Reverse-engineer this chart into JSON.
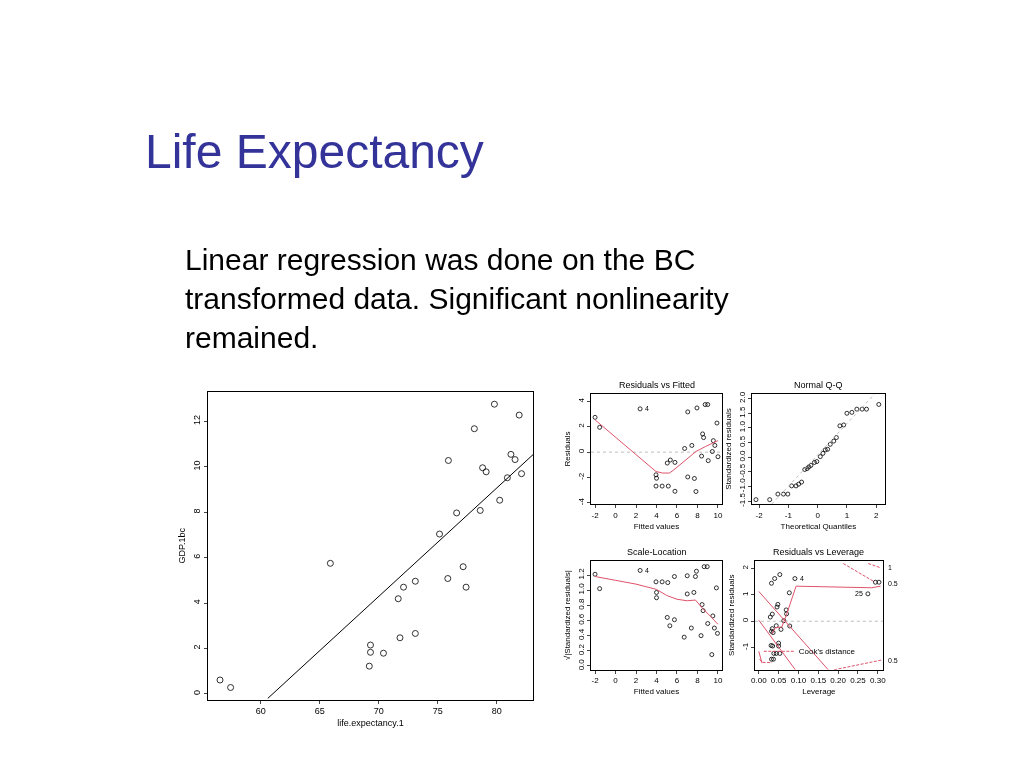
{
  "chart_data": [
    {
      "type": "other",
      "title": "Life Expectancy",
      "annotations": [
        "Linear regression was done on the BC transformed data. Significant nonlinearity remained."
      ]
    },
    {
      "type": "scatter",
      "xlabel": "life.expectancy.1",
      "ylabel": "GDP.1bc",
      "xlim": [
        55.5,
        83.1
      ],
      "ylim": [
        -0.25,
        13.3
      ],
      "xticks": [
        60,
        65,
        70,
        75,
        80
      ],
      "yticks": [
        0,
        2,
        4,
        6,
        8,
        10,
        12
      ],
      "grid": false,
      "legend": false,
      "series": [
        {
          "type": "scatter",
          "marker": "circle",
          "color": "#000000",
          "x": [
            56.55,
            57.45,
            65.9,
            69.2,
            69.3,
            69.3,
            70.4,
            71.65,
            71.8,
            72.1,
            73.1,
            73.1,
            75.15,
            75.85,
            75.9,
            76.6,
            77.15,
            77.4,
            78.1,
            78.6,
            78.8,
            79.1,
            79.8,
            80.25,
            80.9,
            81.2,
            81.55,
            81.9,
            82.1
          ],
          "values": [
            0.61,
            0.28,
            5.75,
            1.22,
            1.83,
            2.15,
            1.79,
            4.19,
            2.47,
            4.7,
            4.96,
            2.66,
            7.04,
            5.08,
            10.28,
            7.97,
            5.6,
            4.7,
            11.68,
            8.08,
            9.96,
            9.78,
            12.76,
            8.53,
            9.52,
            10.55,
            10.32,
            12.28,
            9.7
          ]
        },
        {
          "type": "line",
          "marker": "none",
          "line_style": "solid",
          "color": "#000000",
          "x": [
            60.6,
            83.1
          ],
          "values": [
            -0.2,
            10.55
          ]
        }
      ]
    },
    {
      "type": "scatter",
      "title": "Residuals vs Fitted",
      "xlabel": "Fitted values",
      "ylabel": "Residuals",
      "xlim": [
        -2.4,
        10.4
      ],
      "ylim": [
        -4.1,
        4.6
      ],
      "xticks": [
        -2,
        0,
        2,
        4,
        6,
        8,
        10
      ],
      "yticks": [
        -4,
        -2,
        0,
        2,
        4
      ],
      "grid": false,
      "legend": false,
      "ref_lines": [
        {
          "axis": "y",
          "value": 0,
          "color": "#bebebe",
          "line_style": "dotted"
        }
      ],
      "annotations": [
        {
          "text": "4",
          "x": 2.4,
          "y": 3.42
        }
      ],
      "series": [
        {
          "type": "scatter",
          "marker": "circle",
          "color": "#000000",
          "x": [
            -2.0,
            -1.55,
            2.4,
            3.95,
            4.0,
            3.95,
            4.55,
            5.15,
            5.05,
            5.35,
            5.8,
            5.8,
            6.75,
            7.05,
            7.05,
            7.45,
            7.7,
            7.85,
            7.95,
            8.4,
            8.5,
            8.6,
            8.75,
            9.0,
            9.05,
            9.45,
            9.55,
            9.7,
            9.9,
            10.0
          ],
          "values": [
            2.75,
            1.96,
            3.42,
            -1.79,
            -2.06,
            -2.68,
            -2.68,
            -2.68,
            -0.86,
            -0.62,
            -0.81,
            -3.09,
            0.29,
            3.18,
            -1.96,
            0.53,
            -2.08,
            -3.11,
            3.49,
            -0.31,
            1.44,
            1.15,
            3.76,
            3.76,
            -0.67,
            0.05,
            0.91,
            0.53,
            2.3,
            -0.36
          ]
        },
        {
          "type": "line",
          "marker": "none",
          "line_style": "solid",
          "color": "#df536b",
          "x": [
            -2.0,
            3.95,
            4.6,
            5.25,
            5.6,
            7.85,
            8.8,
            10.0
          ],
          "values": [
            2.55,
            -1.53,
            -1.65,
            -1.65,
            -1.46,
            0.05,
            0.45,
            0.91
          ]
        }
      ]
    },
    {
      "type": "scatter",
      "title": "Normal Q-Q",
      "xlabel": "Theoretical Quantiles",
      "ylabel": "Standardized residuals",
      "xlim": [
        -2.25,
        2.3
      ],
      "ylim": [
        -1.6,
        2.16
      ],
      "xticks": [
        -2,
        -1,
        0,
        1,
        2
      ],
      "yticks": [
        -1.5,
        {
          "value": -1.0,
          "label": "-1.0"
        },
        -0.5,
        {
          "value": 0.0,
          "label": "0.0"
        },
        0.5,
        {
          "value": 1.0,
          "label": "1.0"
        },
        1.5,
        {
          "value": 2.0,
          "label": "2.0"
        }
      ],
      "grid": false,
      "legend": false,
      "series": [
        {
          "type": "scatter",
          "marker": "circle",
          "color": "#000000",
          "x": [
            -2.11,
            -1.64,
            -1.36,
            -1.17,
            -1.02,
            -0.89,
            -0.74,
            -0.65,
            -0.55,
            -0.44,
            -0.36,
            -0.3,
            -0.23,
            -0.11,
            -0.03,
            0.09,
            0.18,
            0.26,
            0.34,
            0.43,
            0.55,
            0.64,
            0.76,
            0.89,
            1.0,
            1.17,
            1.34,
            1.52,
            1.67,
            2.09
          ],
          "values": [
            -1.45,
            -1.45,
            -1.26,
            -1.26,
            -1.26,
            -0.98,
            -0.98,
            -0.92,
            -0.85,
            -0.42,
            -0.39,
            -0.33,
            -0.28,
            -0.18,
            -0.15,
            0.02,
            0.13,
            0.25,
            0.27,
            0.44,
            0.55,
            0.67,
            1.07,
            1.1,
            1.5,
            1.53,
            1.64,
            1.64,
            1.64,
            1.8
          ]
        },
        {
          "type": "line",
          "marker": "none",
          "line_style": "dotted",
          "color": "#bebebe",
          "x": [
            -1.57,
            1.95
          ],
          "values": [
            -1.6,
            2.16
          ]
        }
      ]
    },
    {
      "type": "scatter",
      "title": "Scale-Location",
      "xlabel": "Fitted values",
      "ylabel": "√|Standardized residuals|",
      "xlim": [
        -2.4,
        10.4
      ],
      "ylim": [
        -0.05,
        1.39
      ],
      "xticks": [
        -2,
        0,
        2,
        4,
        6,
        8,
        10
      ],
      "yticks": [
        {
          "value": 0.0,
          "label": "0.0"
        },
        0.2,
        0.4,
        0.6,
        0.8,
        {
          "value": 1.0,
          "label": "1.0"
        },
        1.2
      ],
      "grid": false,
      "legend": false,
      "annotations": [
        {
          "text": "4",
          "x": 2.4,
          "y": 1.26
        }
      ],
      "series": [
        {
          "type": "scatter",
          "marker": "circle",
          "color": "#000000",
          "x": [
            -2.0,
            -1.55,
            2.4,
            3.95,
            4.0,
            4.0,
            4.55,
            5.1,
            5.05,
            5.3,
            5.75,
            5.75,
            6.7,
            7.0,
            7.0,
            7.4,
            7.65,
            7.8,
            7.9,
            8.35,
            8.45,
            8.55,
            8.65,
            8.95,
            9.0,
            9.4,
            9.5,
            9.65,
            9.85,
            9.95
          ],
          "values": [
            1.21,
            1.02,
            1.26,
            1.11,
            0.97,
            0.9,
            1.11,
            1.1,
            0.64,
            0.53,
            0.61,
            1.18,
            0.38,
            1.19,
            0.95,
            0.5,
            0.97,
            1.18,
            1.25,
            0.4,
            0.81,
            0.73,
            1.31,
            1.31,
            0.56,
            0.15,
            0.66,
            0.5,
            1.03,
            0.43
          ]
        },
        {
          "type": "line",
          "marker": "none",
          "line_style": "solid",
          "color": "#df536b",
          "x": [
            -2.0,
            0.0,
            2.0,
            4.0,
            5.0,
            6.0,
            7.0,
            7.8,
            8.5,
            9.3,
            10.0
          ],
          "values": [
            1.18,
            1.13,
            1.08,
            1.01,
            0.93,
            0.88,
            0.86,
            0.87,
            0.76,
            0.65,
            0.55
          ]
        }
      ]
    },
    {
      "type": "scatter",
      "title": "Residuals vs Leverage",
      "xlabel": "Leverage",
      "ylabel": "Standardized residuals",
      "xlim": [
        -0.01,
        0.313
      ],
      "ylim": [
        -1.84,
        2.3
      ],
      "xticks": [
        {
          "value": 0.0,
          "label": "0.00"
        },
        0.05,
        {
          "value": 0.1,
          "label": "0.10"
        },
        0.15,
        {
          "value": 0.2,
          "label": "0.20"
        },
        0.25,
        {
          "value": 0.3,
          "label": "0.30"
        }
      ],
      "yticks": [
        -1,
        0,
        1,
        2
      ],
      "grid": false,
      "legend": "bottom left",
      "ref_lines": [
        {
          "axis": "y",
          "value": 0,
          "color": "#bebebe",
          "line_style": "dotted"
        }
      ],
      "annotations": [
        {
          "text": "4",
          "x": 0.091,
          "y": 1.62
        },
        {
          "text": "25",
          "x": 0.275,
          "y": 1.04
        },
        {
          "text": "1",
          "x": 0.313,
          "y": 2.03
        },
        {
          "text": "0.5",
          "x": 0.313,
          "y": 1.45
        },
        {
          "text": "0.5",
          "x": 0.313,
          "y": -1.49
        }
      ],
      "series": [
        {
          "type": "scatter",
          "marker": "circle",
          "color": "#000000",
          "x": [
            0.032,
            0.04,
            0.053,
            0.091,
            0.077,
            0.048,
            0.046,
            0.029,
            0.034,
            0.069,
            0.07,
            0.063,
            0.044,
            0.056,
            0.078,
            0.034,
            0.032,
            0.036,
            0.031,
            0.035,
            0.05,
            0.05,
            0.038,
            0.044,
            0.053,
            0.032,
            0.037,
            0.275,
            0.294,
            0.303
          ],
          "values": [
            1.44,
            1.62,
            1.77,
            1.62,
            1.08,
            0.64,
            0.54,
            0.16,
            0.27,
            0.43,
            0.28,
            0.02,
            -0.17,
            -0.31,
            -0.18,
            -0.28,
            -0.38,
            -0.43,
            -0.92,
            -0.94,
            -0.83,
            -0.94,
            -1.22,
            -1.22,
            -1.22,
            -1.44,
            -1.44,
            1.04,
            1.48,
            1.48
          ]
        },
        {
          "type": "line",
          "marker": "none",
          "line_style": "solid",
          "color": "#df536b",
          "x": [
            0.033,
            0.042,
            0.058,
            0.071,
            0.094,
            0.284,
            0.307
          ],
          "values": [
            -0.48,
            -0.24,
            -0.22,
            0.3,
            1.33,
            1.27,
            1.33
          ]
        },
        {
          "type": "line",
          "marker": "none",
          "line_style": "solid",
          "color": "#df536b",
          "x": [
            0.0,
            0.175
          ],
          "values": [
            1.13,
            -1.84
          ]
        },
        {
          "type": "line",
          "marker": "none",
          "line_style": "solid",
          "color": "#df536b",
          "x": [
            0.0,
            0.092
          ],
          "values": [
            0.04,
            -1.84
          ]
        },
        {
          "type": "line",
          "marker": "none",
          "line_style": "solid",
          "color": "#df536b",
          "x": [
            0.0,
            0.008
          ],
          "values": [
            -1.14,
            -1.59
          ]
        },
        {
          "type": "line",
          "marker": "none",
          "line_style": "dashed",
          "color": "#df536b",
          "name": "Cook's distance",
          "x": [
            0.19,
            0.31
          ],
          "values": [
            -1.84,
            -1.47
          ]
        },
        {
          "type": "line",
          "marker": "none",
          "line_style": "dashed",
          "color": "#df536b",
          "x": [
            0.213,
            0.292
          ],
          "values": [
            2.19,
            1.49
          ]
        },
        {
          "type": "line",
          "marker": "none",
          "line_style": "dashed",
          "color": "#df536b",
          "x": [
            0.276,
            0.307
          ],
          "values": [
            2.19,
            2.03
          ]
        },
        {
          "type": "line",
          "marker": "none",
          "line_style": "dashed",
          "color": "#df536b",
          "x": [
            0.002,
            0.008,
            0.033
          ],
          "values": [
            -1.44,
            -1.56,
            -1.57
          ]
        }
      ]
    }
  ]
}
